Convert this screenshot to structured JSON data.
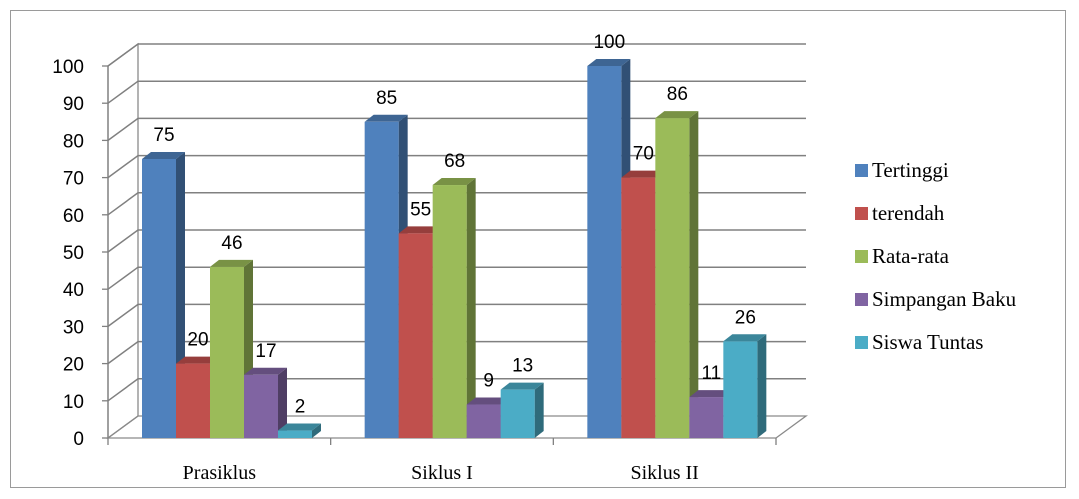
{
  "chart_data": {
    "type": "bar",
    "categories": [
      "Prasiklus",
      "Siklus I",
      "Siklus II"
    ],
    "series": [
      {
        "name": "Tertinggi",
        "values": [
          75,
          85,
          100
        ],
        "color": "#4F81BD"
      },
      {
        "name": "terendah",
        "values": [
          20,
          55,
          70
        ],
        "color": "#C0504D"
      },
      {
        "name": "Rata-rata",
        "values": [
          46,
          68,
          86
        ],
        "color": "#9BBB59"
      },
      {
        "name": "Simpangan Baku",
        "values": [
          17,
          9,
          11
        ],
        "color": "#8064A2"
      },
      {
        "name": "Siswa Tuntas",
        "values": [
          2,
          13,
          26
        ],
        "color": "#4BACC6"
      }
    ],
    "ylim": [
      0,
      100
    ],
    "yticks": [
      "0",
      "10",
      "20",
      "30",
      "40",
      "50",
      "60",
      "70",
      "80",
      "90",
      "100"
    ],
    "grid": true,
    "legend_position": "right",
    "style": "3d-clustered-column"
  }
}
